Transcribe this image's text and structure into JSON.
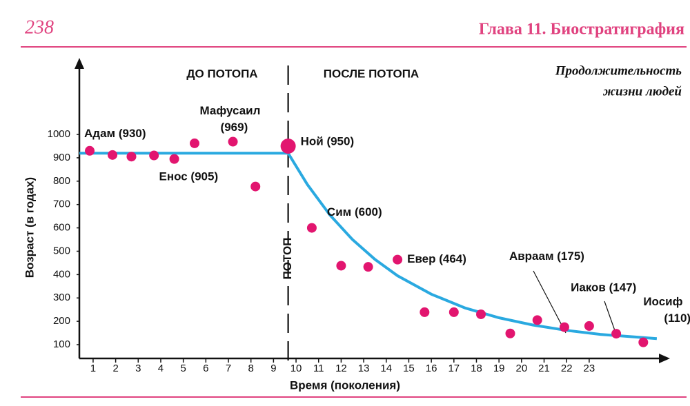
{
  "page": {
    "number": "238",
    "chapter": "Глава 11. Биостратиграфия"
  },
  "chart_data": {
    "type": "scatter",
    "title": [
      "Продолжительность",
      "жизни людей"
    ],
    "xlabel": "Время (поколения)",
    "ylabel": "Возраст (в годах)",
    "annotations": [
      "ДО ПОТОПА",
      "ПОСЛЕ ПОТОПА",
      "ПОТОП"
    ],
    "x": [
      0.85,
      1.86,
      2.7,
      3.7,
      4.6,
      5.5,
      7.2,
      8.2,
      9.65,
      10.7,
      12.0,
      13.2,
      14.5,
      15.7,
      17.0,
      18.2,
      19.5,
      20.7,
      21.9,
      23.0,
      24.2,
      25.4
    ],
    "values": [
      930,
      912,
      905,
      910,
      895,
      962,
      969,
      777,
      950,
      600,
      438,
      433,
      464,
      239,
      239,
      230,
      148,
      205,
      175,
      180,
      147,
      110
    ],
    "point_labels": [
      [
        "Адам (930)"
      ],
      null,
      [
        "Енос (905)"
      ],
      null,
      null,
      null,
      [
        "Мафусаил",
        "(969)"
      ],
      null,
      [
        "Ной (950)"
      ],
      [
        "Сим (600)"
      ],
      null,
      null,
      [
        "Евер (464)"
      ],
      null,
      null,
      null,
      null,
      null,
      [
        "Авраам (175)"
      ],
      null,
      [
        "Иаков (147)"
      ],
      [
        "Иосиф",
        "(110)"
      ]
    ],
    "color": "#e2156f",
    "curve": {
      "color": "#2aa9e0",
      "x": [
        0.39,
        9.65,
        10.5,
        11.5,
        12.5,
        13.5,
        14.5,
        16,
        17.5,
        19,
        20.5,
        22,
        23.5,
        25,
        26
      ],
      "values": [
        920,
        920,
        786,
        655,
        550,
        465,
        395,
        316,
        257,
        215,
        184,
        161,
        144,
        133,
        126
      ]
    },
    "flood_x": 9.65,
    "xlim": [
      0.39,
      26.4
    ],
    "ylim": [
      41,
      1310
    ],
    "xticks": [
      1,
      2,
      3,
      4,
      5,
      6,
      7,
      8,
      9,
      10,
      11,
      12,
      13,
      14,
      15,
      16,
      17,
      18,
      19,
      20,
      21,
      22,
      23
    ],
    "yticks": [
      100,
      200,
      300,
      400,
      500,
      600,
      700,
      800,
      900,
      1000
    ]
  }
}
